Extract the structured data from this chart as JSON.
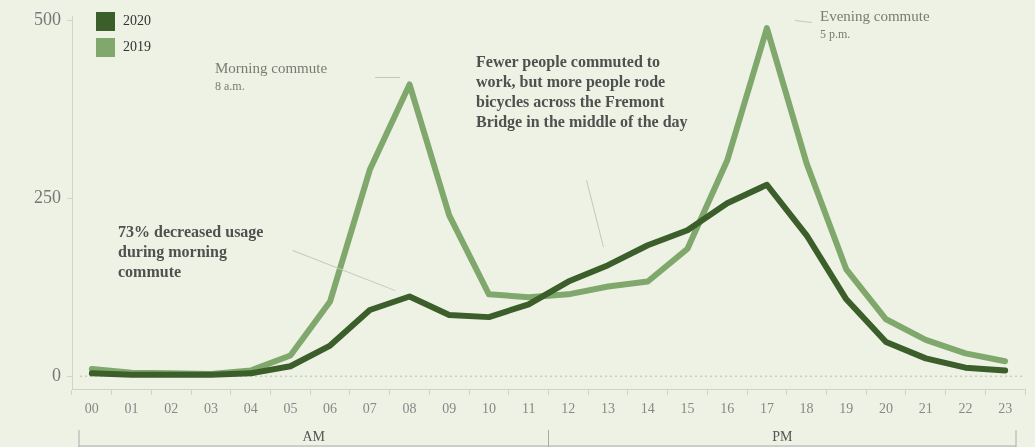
{
  "chart_data": {
    "type": "line",
    "categories": [
      "00",
      "01",
      "02",
      "03",
      "04",
      "05",
      "06",
      "07",
      "08",
      "09",
      "10",
      "11",
      "12",
      "13",
      "14",
      "15",
      "16",
      "17",
      "18",
      "19",
      "20",
      "21",
      "22",
      "23"
    ],
    "series": [
      {
        "name": "2020",
        "color": "#3b5e2b",
        "values": [
          4,
          2,
          2,
          2,
          4,
          14,
          43,
          93,
          112,
          86,
          83,
          101,
          133,
          156,
          184,
          205,
          243,
          269,
          198,
          108,
          48,
          25,
          12,
          8
        ]
      },
      {
        "name": "2019",
        "color": "#80a86c",
        "values": [
          10,
          5,
          4,
          3,
          8,
          29,
          105,
          290,
          410,
          226,
          115,
          111,
          115,
          126,
          133,
          179,
          303,
          489,
          299,
          150,
          80,
          51,
          32,
          21
        ]
      }
    ],
    "ylim": [
      -18,
      505
    ],
    "yticks": [
      0,
      250,
      500
    ],
    "grid": false,
    "legend": "top left",
    "marker": "none",
    "line_style": "solid",
    "ref_lines": [
      {
        "axis": "y",
        "value": 0,
        "line_style": "dotted",
        "color": "#b9bfae"
      }
    ],
    "annotations": [
      "Morning commute\n8 a.m.",
      "Evening commute\n5 p.m.",
      "73% decreased usage during morning commute",
      "Fewer people commuted to work, but more people rode bicycles across the Fremont Bridge in the middle of the day",
      "AM",
      "PM"
    ]
  }
}
